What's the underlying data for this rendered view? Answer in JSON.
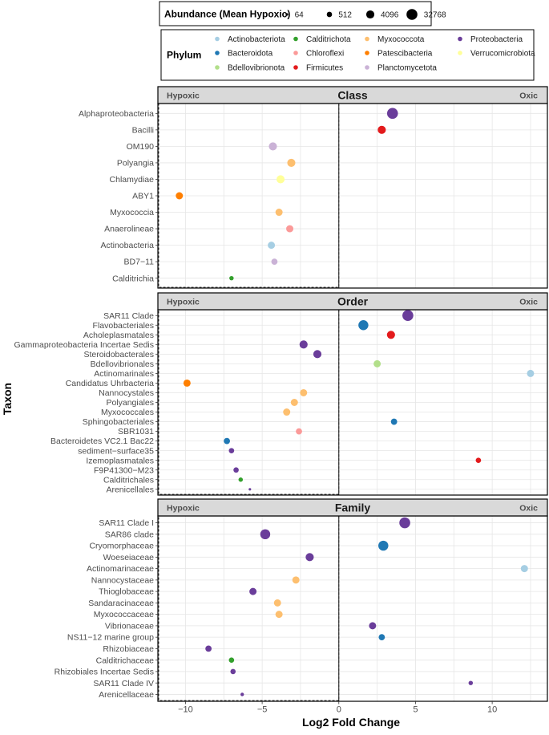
{
  "chart_data": {
    "type": "scatter",
    "xlabel": "Log2 Fold Change",
    "ylabel": "Taxon",
    "xlim": [
      -11.8,
      13.6
    ],
    "xticks": [
      -10,
      -5,
      0,
      5,
      10
    ],
    "x_tick_labels": [
      "−10",
      "−5",
      "0",
      "5",
      "10"
    ],
    "size_legend": {
      "title": "Abundance (Mean Hypoxic)",
      "values": [
        64,
        512,
        4096,
        32768
      ],
      "labels": [
        "64",
        "512",
        "4096",
        "32768"
      ]
    },
    "color_legend": {
      "title": "Phylum",
      "entries": [
        {
          "name": "Actinobacteriota",
          "color": "#a6cee3"
        },
        {
          "name": "Bacteroidota",
          "color": "#1f78b4"
        },
        {
          "name": "Bdellovibrionota",
          "color": "#b2df8a"
        },
        {
          "name": "Calditrichota",
          "color": "#33a02c"
        },
        {
          "name": "Chloroflexi",
          "color": "#fb9a99"
        },
        {
          "name": "Firmicutes",
          "color": "#e31a1c"
        },
        {
          "name": "Myxococcota",
          "color": "#fdbf6f"
        },
        {
          "name": "Patescibacteria",
          "color": "#ff7f00"
        },
        {
          "name": "Planctomycetota",
          "color": "#cab2d6"
        },
        {
          "name": "Proteobacteria",
          "color": "#6a3d9a"
        },
        {
          "name": "Verrucomicrobiota",
          "color": "#ffff99"
        }
      ]
    },
    "panels": [
      {
        "title": "Class",
        "left_label": "Hypoxic",
        "right_label": "Oxic",
        "points": [
          {
            "taxon": "Alphaproteobacteria",
            "x": 3.5,
            "phylum": "Proteobacteria",
            "abundance": 32768
          },
          {
            "taxon": "Bacilli",
            "x": 2.8,
            "phylum": "Firmicutes",
            "abundance": 4096
          },
          {
            "taxon": "OM190",
            "x": -4.3,
            "phylum": "Planctomycetota",
            "abundance": 4096
          },
          {
            "taxon": "Polyangia",
            "x": -3.1,
            "phylum": "Myxococcota",
            "abundance": 4096
          },
          {
            "taxon": "Chlamydiae",
            "x": -3.8,
            "phylum": "Verrucomicrobiota",
            "abundance": 4096
          },
          {
            "taxon": "ABY1",
            "x": -10.4,
            "phylum": "Patescibacteria",
            "abundance": 2048
          },
          {
            "taxon": "Myxococcia",
            "x": -3.9,
            "phylum": "Myxococcota",
            "abundance": 2048
          },
          {
            "taxon": "Anaerolineae",
            "x": -3.2,
            "phylum": "Chloroflexi",
            "abundance": 2048
          },
          {
            "taxon": "Actinobacteria",
            "x": -4.4,
            "phylum": "Actinobacteriota",
            "abundance": 2048
          },
          {
            "taxon": "BD7−11",
            "x": -4.2,
            "phylum": "Planctomycetota",
            "abundance": 1024
          },
          {
            "taxon": "Calditrichia",
            "x": -7.0,
            "phylum": "Calditrichota",
            "abundance": 256
          }
        ]
      },
      {
        "title": "Order",
        "left_label": "Hypoxic",
        "right_label": "Oxic",
        "points": [
          {
            "taxon": "SAR11 Clade",
            "x": 4.5,
            "phylum": "Proteobacteria",
            "abundance": 32768
          },
          {
            "taxon": "Flavobacteriales",
            "x": 1.6,
            "phylum": "Bacteroidota",
            "abundance": 16384
          },
          {
            "taxon": "Acholeplasmatales",
            "x": 3.4,
            "phylum": "Firmicutes",
            "abundance": 4096
          },
          {
            "taxon": "Gammaproteobacteria Incertae Sedis",
            "x": -2.3,
            "phylum": "Proteobacteria",
            "abundance": 4096
          },
          {
            "taxon": "Steroidobacterales",
            "x": -1.4,
            "phylum": "Proteobacteria",
            "abundance": 4096
          },
          {
            "taxon": "Bdellovibrionales",
            "x": 2.5,
            "phylum": "Bdellovibrionota",
            "abundance": 2048
          },
          {
            "taxon": "Actinomarinales",
            "x": 12.5,
            "phylum": "Actinobacteriota",
            "abundance": 2048
          },
          {
            "taxon": "Candidatus Uhrbacteria",
            "x": -9.9,
            "phylum": "Patescibacteria",
            "abundance": 2048
          },
          {
            "taxon": "Nannocystales",
            "x": -2.3,
            "phylum": "Myxococcota",
            "abundance": 2048
          },
          {
            "taxon": "Polyangiales",
            "x": -2.9,
            "phylum": "Myxococcota",
            "abundance": 2048
          },
          {
            "taxon": "Myxococcales",
            "x": -3.4,
            "phylum": "Myxococcota",
            "abundance": 2048
          },
          {
            "taxon": "Sphingobacteriales",
            "x": 3.6,
            "phylum": "Bacteroidota",
            "abundance": 1024
          },
          {
            "taxon": "SBR1031",
            "x": -2.6,
            "phylum": "Chloroflexi",
            "abundance": 1024
          },
          {
            "taxon": "Bacteroidetes VC2.1 Bac22",
            "x": -7.3,
            "phylum": "Bacteroidota",
            "abundance": 1024
          },
          {
            "taxon": "sediment−surface35",
            "x": -7.0,
            "phylum": "Proteobacteria",
            "abundance": 512
          },
          {
            "taxon": "Izemoplasmatales",
            "x": 9.1,
            "phylum": "Firmicutes",
            "abundance": 512
          },
          {
            "taxon": "F9P41300−M23",
            "x": -6.7,
            "phylum": "Proteobacteria",
            "abundance": 512
          },
          {
            "taxon": "Calditrichales",
            "x": -6.4,
            "phylum": "Calditrichota",
            "abundance": 256
          },
          {
            "taxon": "Arenicellales",
            "x": -5.8,
            "phylum": "Proteobacteria",
            "abundance": 64
          }
        ]
      },
      {
        "title": "Family",
        "left_label": "Hypoxic",
        "right_label": "Oxic",
        "points": [
          {
            "taxon": "SAR11 Clade I",
            "x": 4.3,
            "phylum": "Proteobacteria",
            "abundance": 32768
          },
          {
            "taxon": "SAR86 clade",
            "x": -4.8,
            "phylum": "Proteobacteria",
            "abundance": 16384
          },
          {
            "taxon": "Cryomorphaceae",
            "x": 2.9,
            "phylum": "Bacteroidota",
            "abundance": 16384
          },
          {
            "taxon": "Woeseiaceae",
            "x": -1.9,
            "phylum": "Proteobacteria",
            "abundance": 4096
          },
          {
            "taxon": "Actinomarinaceae",
            "x": 12.1,
            "phylum": "Actinobacteriota",
            "abundance": 2048
          },
          {
            "taxon": "Nannocystaceae",
            "x": -2.8,
            "phylum": "Myxococcota",
            "abundance": 2048
          },
          {
            "taxon": "Thioglobaceae",
            "x": -5.6,
            "phylum": "Proteobacteria",
            "abundance": 2048
          },
          {
            "taxon": "Sandaracinaceae",
            "x": -4.0,
            "phylum": "Myxococcota",
            "abundance": 2048
          },
          {
            "taxon": "Myxococcaceae",
            "x": -3.9,
            "phylum": "Myxococcota",
            "abundance": 2048
          },
          {
            "taxon": "Vibrionaceae",
            "x": 2.2,
            "phylum": "Proteobacteria",
            "abundance": 2048
          },
          {
            "taxon": "NS11−12 marine group",
            "x": 2.8,
            "phylum": "Bacteroidota",
            "abundance": 1024
          },
          {
            "taxon": "Rhizobiaceae",
            "x": -8.5,
            "phylum": "Proteobacteria",
            "abundance": 1024
          },
          {
            "taxon": "Calditrichaceae",
            "x": -7.0,
            "phylum": "Calditrichota",
            "abundance": 512
          },
          {
            "taxon": "Rhizobiales Incertae Sedis",
            "x": -6.9,
            "phylum": "Proteobacteria",
            "abundance": 512
          },
          {
            "taxon": "SAR11 Clade IV",
            "x": 8.6,
            "phylum": "Proteobacteria",
            "abundance": 256
          },
          {
            "taxon": "Arenicellaceae",
            "x": -6.3,
            "phylum": "Proteobacteria",
            "abundance": 128
          }
        ]
      }
    ]
  }
}
